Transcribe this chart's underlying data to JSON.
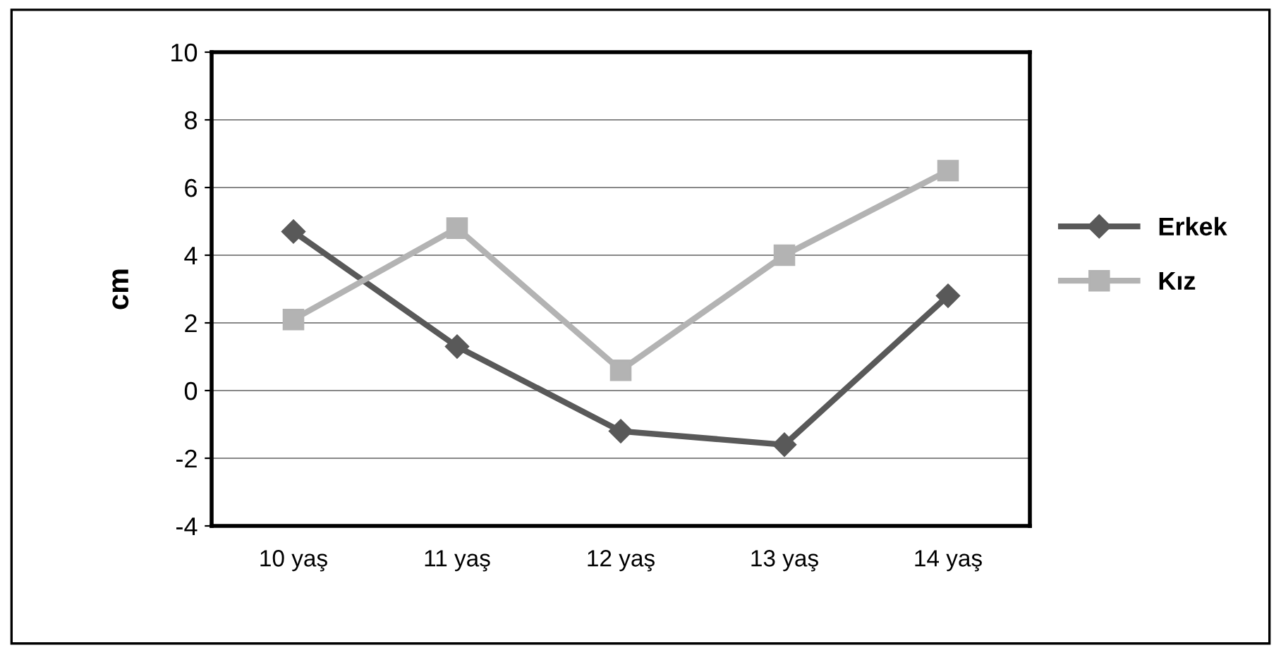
{
  "chart_data": {
    "type": "line",
    "ylabel": "cm",
    "categories": [
      "10 yaş",
      "11 yaş",
      "12 yaş",
      "13 yaş",
      "14 yaş"
    ],
    "series": [
      {
        "name": "Erkek",
        "color": "#595959",
        "marker": "diamond",
        "values": [
          4.7,
          1.3,
          -1.2,
          -1.6,
          2.8
        ]
      },
      {
        "name": "Kız",
        "color": "#b3b3b3",
        "marker": "square",
        "values": [
          2.1,
          4.8,
          0.6,
          4.0,
          6.5
        ]
      }
    ],
    "ylim": [
      -4,
      10
    ],
    "yticks": [
      -4,
      -2,
      0,
      2,
      4,
      6,
      8,
      10
    ],
    "grid": "y",
    "legend": "right",
    "line_style": "solid"
  }
}
